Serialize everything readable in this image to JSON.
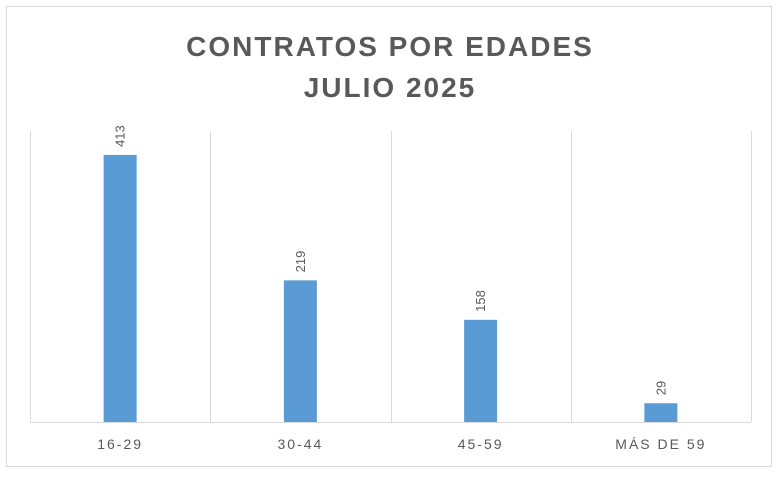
{
  "chart_data": {
    "type": "bar",
    "title_lines": [
      "CONTRATOS POR EDADES",
      "JULIO 2025"
    ],
    "categories": [
      "16-29",
      "30-44",
      "45-59",
      "MÁS DE 59"
    ],
    "values": [
      413,
      219,
      158,
      29
    ],
    "data_labels": [
      "413",
      "219",
      "158",
      "29"
    ],
    "xlabel": "",
    "ylabel": "",
    "ylim": [
      0,
      450
    ],
    "grid": "vertical category separators",
    "legend": "none",
    "bar_color": "#5b9bd5",
    "gridline_color": "#d9d9d9",
    "text_color": "#595959"
  }
}
